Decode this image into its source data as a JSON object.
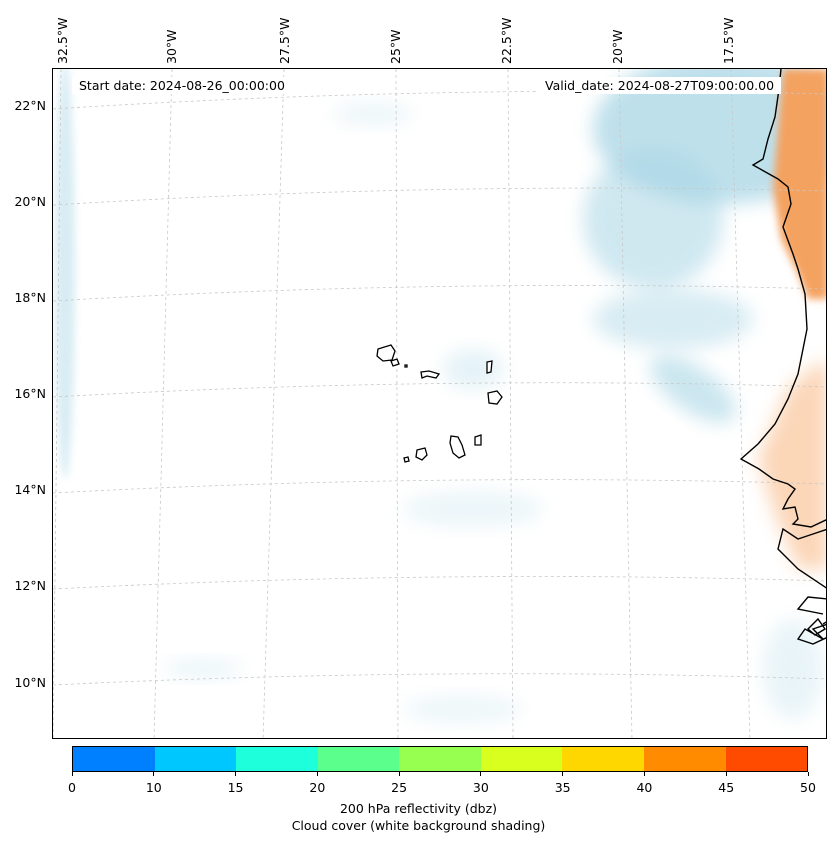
{
  "map": {
    "start_date_text": "Start date: 2024-08-26_00:00:00",
    "valid_date_text": "Valid_date: 2024-08-27T09:00:00.00",
    "longitude_labels": [
      "32.5°W",
      "30°W",
      "27.5°W",
      "25°W",
      "22.5°W",
      "20°W",
      "17.5°W"
    ],
    "latitude_labels": [
      "22°N",
      "20°N",
      "18°N",
      "16°N",
      "14°N",
      "12°N",
      "10°N"
    ],
    "extent": {
      "lon_min": -33.0,
      "lon_max": -15.8,
      "lat_min": 8.9,
      "lat_max": 22.8
    },
    "field_colors": {
      "cloud": "#a9d6e5",
      "reflectivity_high": "#f4a261",
      "reflectivity_low": "#fbd2b0",
      "coastline": "#000000",
      "grid": "#c8c8c8"
    },
    "features": [
      "Cape Verde islands",
      "West African coastline",
      "Cloud cover shading",
      "Reflectivity shading"
    ]
  },
  "colorbar": {
    "ticks": [
      "0",
      "10",
      "15",
      "20",
      "25",
      "30",
      "35",
      "40",
      "45",
      "50"
    ],
    "colors": [
      "#0080ff",
      "#00c8ff",
      "#1effdc",
      "#5aff8c",
      "#96ff50",
      "#d8ff1e",
      "#ffd700",
      "#ff8c00",
      "#ff4b00"
    ],
    "label_line1": "200 hPa reflectivity (dbz)",
    "label_line2": "Cloud cover (white background shading)"
  }
}
